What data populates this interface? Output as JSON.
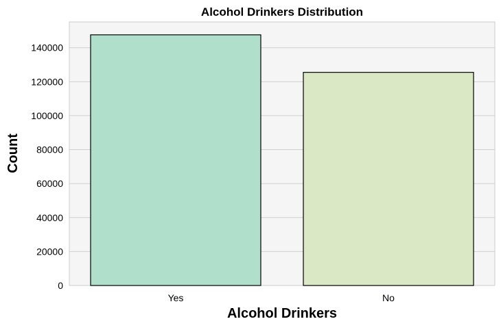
{
  "chart_data": {
    "type": "bar",
    "title": "Alcohol Drinkers Distribution",
    "xlabel": "Alcohol Drinkers",
    "ylabel": "Count",
    "categories": [
      "Yes",
      "No"
    ],
    "values": [
      147600,
      125500
    ],
    "ylim": [
      0,
      155200
    ],
    "yticks": [
      0,
      20000,
      40000,
      60000,
      80000,
      100000,
      120000,
      140000
    ],
    "ytick_labels": [
      "0",
      "20000",
      "40000",
      "60000",
      "80000",
      "100000",
      "120000",
      "140000"
    ],
    "bar_colors": [
      "#b0dfcb",
      "#dbe8c5"
    ],
    "bar_edge_color": "#000000",
    "plot_background": "#f5f5f5",
    "grid_color": "#d0d0d0",
    "grid": "horizontal",
    "legend": "none"
  }
}
